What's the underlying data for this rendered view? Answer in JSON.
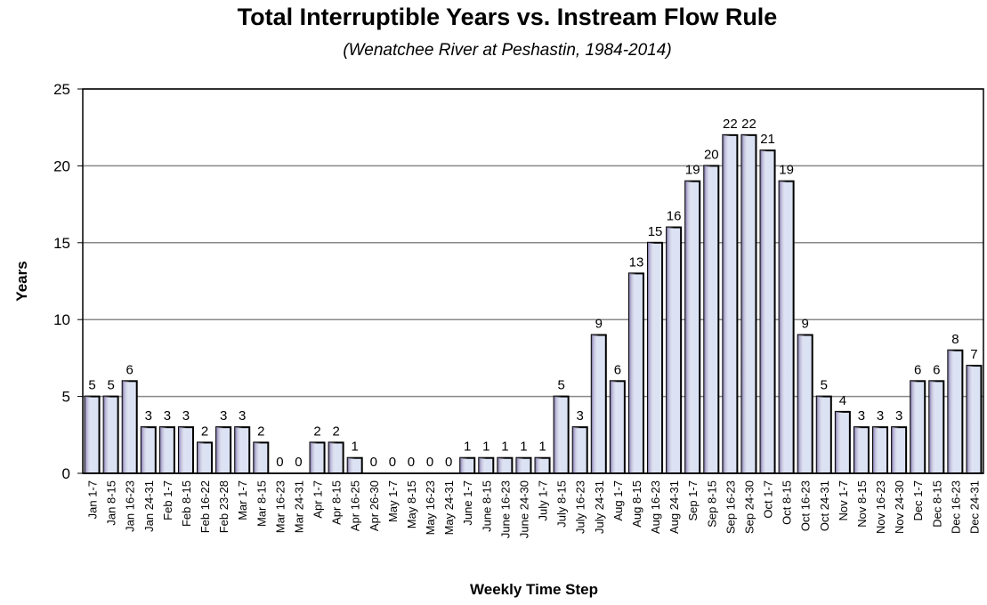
{
  "chart_data": {
    "type": "bar",
    "title": "Total Interruptible Years vs. Instream Flow Rule",
    "subtitle": "(Wenatchee River at Peshastin, 1984-2014)",
    "x_label": "Weekly Time Step",
    "y_label": "Years",
    "categories": [
      "Jan 1-7",
      "Jan 8-15",
      "Jan 16-23",
      "Jan 24-31",
      "Feb 1-7",
      "Feb 8-15",
      "Feb 16-22",
      "Feb 23-28",
      "Mar 1-7",
      "Mar 8-15",
      "Mar 16-23",
      "Mar 24-31",
      "Apr 1-7",
      "Apr 8-15",
      "Apr 16-25",
      "Apr 26-30",
      "May 1-7",
      "May 8-15",
      "May 16-23",
      "May 24-31",
      "June 1-7",
      "June 8-15",
      "June 16-23",
      "June 24-30",
      "July 1-7",
      "July 8-15",
      "July 16-23",
      "July 24-31",
      "Aug 1-7",
      "Aug 8-15",
      "Aug 16-23",
      "Aug 24-31",
      "Sep 1-7",
      "Sep 8-15",
      "Sep 16-23",
      "Sep 24-30",
      "Oct 1-7",
      "Oct 8-15",
      "Oct 16-23",
      "Oct 24-31",
      "Nov 1-7",
      "Nov 8-15",
      "Nov 16-23",
      "Nov 24-30",
      "Dec 1-7",
      "Dec 8-15",
      "Dec 16-23",
      "Dec 24-31"
    ],
    "values": [
      5,
      5,
      6,
      3,
      3,
      3,
      2,
      3,
      3,
      2,
      0,
      0,
      2,
      2,
      1,
      0,
      0,
      0,
      0,
      0,
      1,
      1,
      1,
      1,
      1,
      5,
      3,
      9,
      6,
      13,
      15,
      16,
      19,
      20,
      22,
      22,
      21,
      19,
      9,
      5,
      4,
      3,
      3,
      3,
      6,
      6,
      8,
      7
    ],
    "color": "#dbe2f3",
    "ylim": [
      0,
      25
    ],
    "yticks": [
      0,
      5,
      10,
      15,
      20,
      25
    ],
    "grid": true
  }
}
